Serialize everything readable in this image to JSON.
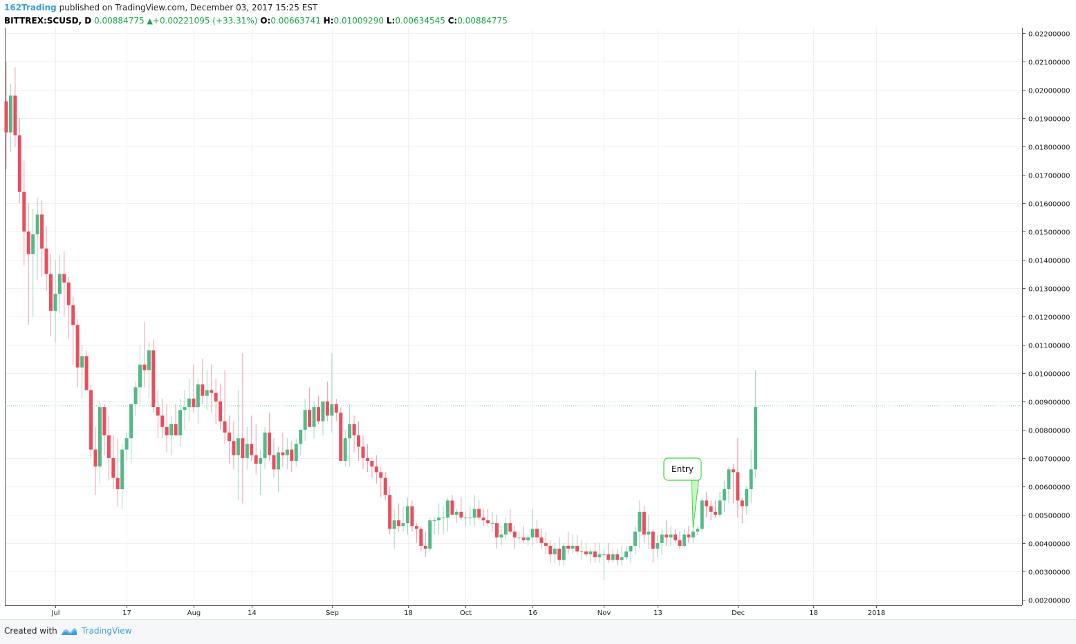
{
  "header": {
    "author": "162Trading",
    "published": "published on TradingView.com, December 03, 2017 15:25 EST"
  },
  "ohlc": {
    "symbol": "BITTREX:SCUSD, D",
    "price": "0.00884775",
    "change": "+0.00221095 (+33.31%)",
    "o_label": "O:",
    "o": "0.00663741",
    "h_label": "H:",
    "h": "0.01009290",
    "l_label": "L:",
    "l": "0.00634545",
    "c_label": "C:",
    "c": "0.00884775"
  },
  "footer": {
    "created": "Created with",
    "brand": "TradingView"
  },
  "colors": {
    "up": "#53b987",
    "down": "#eb4d5c",
    "grid": "#eef0f2",
    "last_price": "#53b987",
    "annotation": "#3ad23a"
  },
  "chart_data": {
    "type": "candlestick",
    "ylim": [
      0.0018,
      0.0222
    ],
    "y_ticks": [
      "0.00200000",
      "0.00300000",
      "0.00400000",
      "0.00500000",
      "0.00600000",
      "0.00700000",
      "0.00800000",
      "0.00900000",
      "0.01000000",
      "0.01100000",
      "0.01200000",
      "0.01300000",
      "0.01400000",
      "0.01500000",
      "0.01600000",
      "0.01700000",
      "0.01800000",
      "0.01900000",
      "0.02000000",
      "0.02100000",
      "0.02200000"
    ],
    "x_ticks": [
      {
        "label": "Jul",
        "day": 11
      },
      {
        "label": "17",
        "day": 27
      },
      {
        "label": "Aug",
        "day": 42
      },
      {
        "label": "14",
        "day": 55
      },
      {
        "label": "Sep",
        "day": 73
      },
      {
        "label": "18",
        "day": 90
      },
      {
        "label": "Oct",
        "day": 103
      },
      {
        "label": "16",
        "day": 118
      },
      {
        "label": "Nov",
        "day": 134
      },
      {
        "label": "13",
        "day": 146
      },
      {
        "label": "Dec",
        "day": 164
      },
      {
        "label": "18",
        "day": 181
      },
      {
        "label": "2018",
        "day": 195
      }
    ],
    "last_price": "0.00884775",
    "last_price_value": 0.00884775,
    "annotation": {
      "text": "Entry",
      "day": 154,
      "price": 0.00455
    },
    "candles": [
      [
        0.0196,
        0.021,
        0.0172,
        0.0185
      ],
      [
        0.0185,
        0.0202,
        0.0178,
        0.0198
      ],
      [
        0.0198,
        0.0208,
        0.018,
        0.0184
      ],
      [
        0.0184,
        0.019,
        0.016,
        0.0164
      ],
      [
        0.0164,
        0.0175,
        0.0138,
        0.015
      ],
      [
        0.015,
        0.016,
        0.0117,
        0.0142
      ],
      [
        0.0142,
        0.0158,
        0.012,
        0.0149
      ],
      [
        0.0149,
        0.0162,
        0.0133,
        0.0156
      ],
      [
        0.0156,
        0.0161,
        0.0134,
        0.0144
      ],
      [
        0.0144,
        0.0152,
        0.0129,
        0.0135
      ],
      [
        0.0135,
        0.0142,
        0.0113,
        0.0122
      ],
      [
        0.0122,
        0.014,
        0.0111,
        0.0128
      ],
      [
        0.0128,
        0.0142,
        0.0121,
        0.0135
      ],
      [
        0.0135,
        0.0143,
        0.012,
        0.0132
      ],
      [
        0.0132,
        0.0134,
        0.0112,
        0.0124
      ],
      [
        0.0124,
        0.0127,
        0.0103,
        0.0117
      ],
      [
        0.0117,
        0.0119,
        0.0095,
        0.0102
      ],
      [
        0.0102,
        0.011,
        0.0091,
        0.0106
      ],
      [
        0.0106,
        0.0108,
        0.0095,
        0.0094
      ],
      [
        0.0094,
        0.0096,
        0.007,
        0.0073
      ],
      [
        0.0073,
        0.0081,
        0.0057,
        0.0067
      ],
      [
        0.0067,
        0.009,
        0.0061,
        0.0088
      ],
      [
        0.0088,
        0.0089,
        0.0071,
        0.0078
      ],
      [
        0.0078,
        0.0085,
        0.0062,
        0.007
      ],
      [
        0.007,
        0.0078,
        0.0059,
        0.0063
      ],
      [
        0.0063,
        0.0077,
        0.0053,
        0.0059
      ],
      [
        0.0059,
        0.0075,
        0.0052,
        0.0073
      ],
      [
        0.0073,
        0.0079,
        0.0069,
        0.0077
      ],
      [
        0.0077,
        0.0089,
        0.0068,
        0.0089
      ],
      [
        0.0089,
        0.0097,
        0.0085,
        0.0095
      ],
      [
        0.0095,
        0.011,
        0.0088,
        0.0103
      ],
      [
        0.0103,
        0.0118,
        0.0095,
        0.0101
      ],
      [
        0.0101,
        0.0111,
        0.0091,
        0.0108
      ],
      [
        0.0108,
        0.0112,
        0.0086,
        0.0088
      ],
      [
        0.0088,
        0.0094,
        0.0077,
        0.0085
      ],
      [
        0.0085,
        0.0091,
        0.0077,
        0.0081
      ],
      [
        0.0081,
        0.0089,
        0.0072,
        0.0078
      ],
      [
        0.0078,
        0.0085,
        0.0071,
        0.0082
      ],
      [
        0.0082,
        0.0089,
        0.0079,
        0.0078
      ],
      [
        0.0078,
        0.0091,
        0.0074,
        0.0087
      ],
      [
        0.0087,
        0.0094,
        0.008,
        0.0088
      ],
      [
        0.0088,
        0.0098,
        0.0083,
        0.0091
      ],
      [
        0.0091,
        0.0103,
        0.0086,
        0.0088
      ],
      [
        0.0088,
        0.0098,
        0.0082,
        0.0096
      ],
      [
        0.0096,
        0.0105,
        0.0089,
        0.0092
      ],
      [
        0.0092,
        0.0101,
        0.0087,
        0.0094
      ],
      [
        0.0094,
        0.0103,
        0.0086,
        0.0093
      ],
      [
        0.0093,
        0.0098,
        0.0082,
        0.009
      ],
      [
        0.009,
        0.0096,
        0.008,
        0.0083
      ],
      [
        0.0083,
        0.0101,
        0.0075,
        0.0079
      ],
      [
        0.0079,
        0.0085,
        0.0068,
        0.0076
      ],
      [
        0.0076,
        0.0083,
        0.0066,
        0.0071
      ],
      [
        0.0071,
        0.0094,
        0.0055,
        0.0077
      ],
      [
        0.0077,
        0.0107,
        0.0054,
        0.007
      ],
      [
        0.007,
        0.0081,
        0.0066,
        0.0075
      ],
      [
        0.0075,
        0.0085,
        0.0069,
        0.0071
      ],
      [
        0.0071,
        0.0082,
        0.0064,
        0.0068
      ],
      [
        0.0068,
        0.0073,
        0.0057,
        0.007
      ],
      [
        0.007,
        0.0081,
        0.0066,
        0.0079
      ],
      [
        0.0079,
        0.0086,
        0.0069,
        0.0071
      ],
      [
        0.0071,
        0.0077,
        0.0063,
        0.0066
      ],
      [
        0.0066,
        0.0074,
        0.0058,
        0.0072
      ],
      [
        0.0072,
        0.0079,
        0.0067,
        0.0071
      ],
      [
        0.0071,
        0.0077,
        0.0066,
        0.0073
      ],
      [
        0.0073,
        0.0076,
        0.0065,
        0.0069
      ],
      [
        0.0069,
        0.0077,
        0.0067,
        0.0075
      ],
      [
        0.0075,
        0.008,
        0.0071,
        0.008
      ],
      [
        0.008,
        0.0091,
        0.0076,
        0.0087
      ],
      [
        0.0087,
        0.0095,
        0.0081,
        0.0081
      ],
      [
        0.0081,
        0.009,
        0.0077,
        0.0088
      ],
      [
        0.0088,
        0.0092,
        0.0082,
        0.0083
      ],
      [
        0.0083,
        0.009,
        0.0078,
        0.009
      ],
      [
        0.009,
        0.0097,
        0.0083,
        0.0085
      ],
      [
        0.0085,
        0.0107,
        0.0079,
        0.0089
      ],
      [
        0.0089,
        0.0091,
        0.0083,
        0.0086
      ],
      [
        0.0086,
        0.0088,
        0.0071,
        0.0069
      ],
      [
        0.0069,
        0.008,
        0.0067,
        0.0077
      ],
      [
        0.0077,
        0.0089,
        0.0067,
        0.0082
      ],
      [
        0.0082,
        0.0085,
        0.0072,
        0.0078
      ],
      [
        0.0078,
        0.0083,
        0.0069,
        0.0074
      ],
      [
        0.0074,
        0.0078,
        0.0066,
        0.007
      ],
      [
        0.007,
        0.0075,
        0.0065,
        0.0069
      ],
      [
        0.0069,
        0.007,
        0.0063,
        0.0067
      ],
      [
        0.0067,
        0.0071,
        0.0061,
        0.0065
      ],
      [
        0.0065,
        0.0067,
        0.0056,
        0.0063
      ],
      [
        0.0063,
        0.0065,
        0.0055,
        0.0057
      ],
      [
        0.0057,
        0.006,
        0.0043,
        0.0045
      ],
      [
        0.0045,
        0.0052,
        0.0038,
        0.0048
      ],
      [
        0.0048,
        0.0054,
        0.0044,
        0.0046
      ],
      [
        0.0046,
        0.0053,
        0.0044,
        0.0047
      ],
      [
        0.0047,
        0.0056,
        0.0043,
        0.0053
      ],
      [
        0.0053,
        0.0055,
        0.0044,
        0.0046
      ],
      [
        0.0046,
        0.0047,
        0.004,
        0.0045
      ],
      [
        0.0045,
        0.0046,
        0.0037,
        0.0039
      ],
      [
        0.0039,
        0.0044,
        0.0035,
        0.0038
      ],
      [
        0.0038,
        0.0049,
        0.0037,
        0.0048
      ],
      [
        0.0048,
        0.0049,
        0.0043,
        0.0048
      ],
      [
        0.0048,
        0.0054,
        0.0043,
        0.0049
      ],
      [
        0.0049,
        0.0053,
        0.0043,
        0.0049
      ],
      [
        0.0049,
        0.0056,
        0.0044,
        0.0055
      ],
      [
        0.0055,
        0.0057,
        0.0051,
        0.005
      ],
      [
        0.005,
        0.0052,
        0.0047,
        0.0051
      ],
      [
        0.0051,
        0.0056,
        0.0048,
        0.0049
      ],
      [
        0.0049,
        0.0051,
        0.0046,
        0.0049
      ],
      [
        0.0049,
        0.0053,
        0.0046,
        0.0049
      ],
      [
        0.0049,
        0.0057,
        0.0046,
        0.0052
      ],
      [
        0.0052,
        0.0055,
        0.0048,
        0.0049
      ],
      [
        0.0049,
        0.0052,
        0.0046,
        0.0048
      ],
      [
        0.0048,
        0.0052,
        0.0046,
        0.0047
      ],
      [
        0.0047,
        0.0051,
        0.0044,
        0.0047
      ],
      [
        0.0047,
        0.005,
        0.0038,
        0.0042
      ],
      [
        0.0042,
        0.0046,
        0.0039,
        0.0043
      ],
      [
        0.0043,
        0.0049,
        0.0041,
        0.0047
      ],
      [
        0.0047,
        0.0052,
        0.0043,
        0.0044
      ],
      [
        0.0044,
        0.0046,
        0.0038,
        0.0042
      ],
      [
        0.0042,
        0.0044,
        0.004,
        0.0042
      ],
      [
        0.0042,
        0.0046,
        0.004,
        0.0041
      ],
      [
        0.0041,
        0.0043,
        0.0039,
        0.0042
      ],
      [
        0.0042,
        0.0052,
        0.0039,
        0.0045
      ],
      [
        0.0045,
        0.0048,
        0.004,
        0.0042
      ],
      [
        0.0042,
        0.0045,
        0.0038,
        0.004
      ],
      [
        0.004,
        0.0044,
        0.0036,
        0.0039
      ],
      [
        0.0039,
        0.0041,
        0.0033,
        0.0036
      ],
      [
        0.0036,
        0.004,
        0.0033,
        0.0038
      ],
      [
        0.0038,
        0.0042,
        0.0032,
        0.0034
      ],
      [
        0.0034,
        0.004,
        0.0032,
        0.0039
      ],
      [
        0.0039,
        0.0044,
        0.0036,
        0.0038
      ],
      [
        0.0038,
        0.0043,
        0.0036,
        0.0039
      ],
      [
        0.0039,
        0.0043,
        0.0036,
        0.0037
      ],
      [
        0.0037,
        0.0041,
        0.0034,
        0.0037
      ],
      [
        0.0037,
        0.004,
        0.0035,
        0.0036
      ],
      [
        0.0036,
        0.0038,
        0.0033,
        0.0037
      ],
      [
        0.0037,
        0.004,
        0.0033,
        0.0035
      ],
      [
        0.0035,
        0.004,
        0.0033,
        0.0036
      ],
      [
        0.0036,
        0.0038,
        0.0027,
        0.0036
      ],
      [
        0.0036,
        0.004,
        0.0033,
        0.0034
      ],
      [
        0.0034,
        0.0038,
        0.0033,
        0.0036
      ],
      [
        0.0036,
        0.0038,
        0.0032,
        0.0034
      ],
      [
        0.0034,
        0.0039,
        0.0032,
        0.0035
      ],
      [
        0.0035,
        0.0039,
        0.0034,
        0.0037
      ],
      [
        0.0037,
        0.0039,
        0.0033,
        0.0039
      ],
      [
        0.0039,
        0.0046,
        0.0036,
        0.0044
      ],
      [
        0.0044,
        0.0055,
        0.0038,
        0.0051
      ],
      [
        0.0051,
        0.0053,
        0.004,
        0.0043
      ],
      [
        0.0043,
        0.005,
        0.0038,
        0.0044
      ],
      [
        0.0044,
        0.0045,
        0.0033,
        0.0038
      ],
      [
        0.0038,
        0.0043,
        0.0035,
        0.004
      ],
      [
        0.004,
        0.0045,
        0.0036,
        0.0043
      ],
      [
        0.0043,
        0.0048,
        0.0039,
        0.0042
      ],
      [
        0.0042,
        0.0046,
        0.0039,
        0.0043
      ],
      [
        0.0043,
        0.0045,
        0.004,
        0.0041
      ],
      [
        0.0041,
        0.0044,
        0.0038,
        0.0039
      ],
      [
        0.0039,
        0.0045,
        0.0038,
        0.0043
      ],
      [
        0.0043,
        0.0046,
        0.004,
        0.0042
      ],
      [
        0.0042,
        0.0046,
        0.004,
        0.0044
      ],
      [
        0.0044,
        0.0046,
        0.0043,
        0.0045
      ],
      [
        0.0045,
        0.0056,
        0.0044,
        0.0055
      ],
      [
        0.0055,
        0.0058,
        0.0049,
        0.0053
      ],
      [
        0.0053,
        0.0055,
        0.0048,
        0.0051
      ],
      [
        0.0051,
        0.0055,
        0.0049,
        0.005
      ],
      [
        0.005,
        0.0058,
        0.0049,
        0.0055
      ],
      [
        0.0055,
        0.0062,
        0.0051,
        0.0059
      ],
      [
        0.0059,
        0.0067,
        0.0054,
        0.0066
      ],
      [
        0.0066,
        0.0068,
        0.0054,
        0.0065
      ],
      [
        0.0065,
        0.0077,
        0.0049,
        0.0055
      ],
      [
        0.0055,
        0.0056,
        0.0047,
        0.0053
      ],
      [
        0.0053,
        0.006,
        0.005,
        0.0059
      ],
      [
        0.0059,
        0.0073,
        0.0054,
        0.0066
      ],
      [
        0.0066,
        0.0101,
        0.0063,
        0.0088
      ]
    ]
  }
}
